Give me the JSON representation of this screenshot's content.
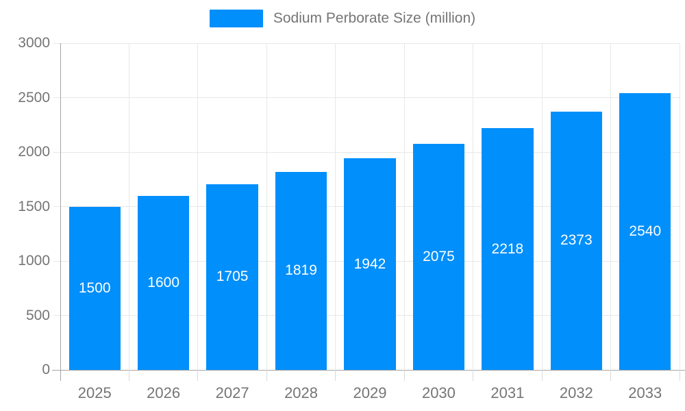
{
  "legend": {
    "label": "Sodium Perborate Size (million)"
  },
  "colors": {
    "bar": "#008FFB",
    "bar_label": "#FFFFFF",
    "axis_text": "#757575",
    "gridline": "#E7E7E7",
    "tick": "#D9D9D9",
    "axis_line": "#A6A6A6",
    "background": "#FFFFFF"
  },
  "chart_data": {
    "type": "bar",
    "title": "Sodium Perborate Size (million)",
    "categories": [
      "2025",
      "2026",
      "2027",
      "2028",
      "2029",
      "2030",
      "2031",
      "2032",
      "2033"
    ],
    "series": [
      {
        "name": "Sodium Perborate Size (million)",
        "values": [
          1500,
          1600,
          1705,
          1819,
          1942,
          2075,
          2218,
          2373,
          2540
        ]
      }
    ],
    "xlabel": "",
    "ylabel": "",
    "ylim": [
      0,
      3000
    ],
    "yticks": [
      0,
      500,
      1000,
      1500,
      2000,
      2500,
      3000
    ],
    "grid": true,
    "legend_position": "top",
    "data_labels": true
  }
}
